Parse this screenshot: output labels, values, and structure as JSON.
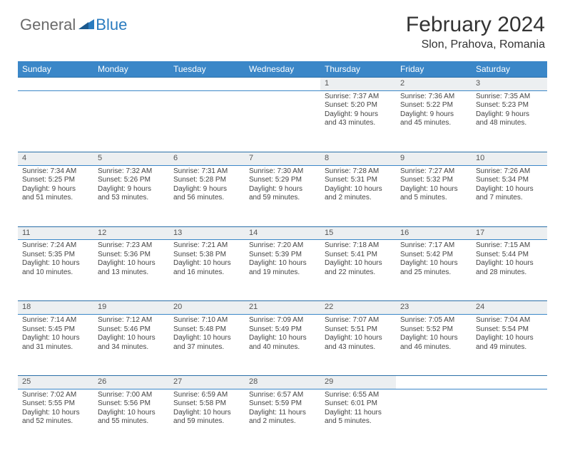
{
  "logo": {
    "text1": "General",
    "text2": "Blue"
  },
  "title": "February 2024",
  "location": "Slon, Prahova, Romania",
  "colors": {
    "header_bg": "#3b87c8",
    "header_text": "#ffffff",
    "daynum_bg": "#eceff1",
    "border": "#2a6fa8",
    "logo_gray": "#6a6a6a",
    "logo_blue": "#2a7bbf"
  },
  "day_headers": [
    "Sunday",
    "Monday",
    "Tuesday",
    "Wednesday",
    "Thursday",
    "Friday",
    "Saturday"
  ],
  "weeks": [
    [
      null,
      null,
      null,
      null,
      {
        "n": "1",
        "sr": "7:37 AM",
        "ss": "5:20 PM",
        "dl": "9 hours and 43 minutes."
      },
      {
        "n": "2",
        "sr": "7:36 AM",
        "ss": "5:22 PM",
        "dl": "9 hours and 45 minutes."
      },
      {
        "n": "3",
        "sr": "7:35 AM",
        "ss": "5:23 PM",
        "dl": "9 hours and 48 minutes."
      }
    ],
    [
      {
        "n": "4",
        "sr": "7:34 AM",
        "ss": "5:25 PM",
        "dl": "9 hours and 51 minutes."
      },
      {
        "n": "5",
        "sr": "7:32 AM",
        "ss": "5:26 PM",
        "dl": "9 hours and 53 minutes."
      },
      {
        "n": "6",
        "sr": "7:31 AM",
        "ss": "5:28 PM",
        "dl": "9 hours and 56 minutes."
      },
      {
        "n": "7",
        "sr": "7:30 AM",
        "ss": "5:29 PM",
        "dl": "9 hours and 59 minutes."
      },
      {
        "n": "8",
        "sr": "7:28 AM",
        "ss": "5:31 PM",
        "dl": "10 hours and 2 minutes."
      },
      {
        "n": "9",
        "sr": "7:27 AM",
        "ss": "5:32 PM",
        "dl": "10 hours and 5 minutes."
      },
      {
        "n": "10",
        "sr": "7:26 AM",
        "ss": "5:34 PM",
        "dl": "10 hours and 7 minutes."
      }
    ],
    [
      {
        "n": "11",
        "sr": "7:24 AM",
        "ss": "5:35 PM",
        "dl": "10 hours and 10 minutes."
      },
      {
        "n": "12",
        "sr": "7:23 AM",
        "ss": "5:36 PM",
        "dl": "10 hours and 13 minutes."
      },
      {
        "n": "13",
        "sr": "7:21 AM",
        "ss": "5:38 PM",
        "dl": "10 hours and 16 minutes."
      },
      {
        "n": "14",
        "sr": "7:20 AM",
        "ss": "5:39 PM",
        "dl": "10 hours and 19 minutes."
      },
      {
        "n": "15",
        "sr": "7:18 AM",
        "ss": "5:41 PM",
        "dl": "10 hours and 22 minutes."
      },
      {
        "n": "16",
        "sr": "7:17 AM",
        "ss": "5:42 PM",
        "dl": "10 hours and 25 minutes."
      },
      {
        "n": "17",
        "sr": "7:15 AM",
        "ss": "5:44 PM",
        "dl": "10 hours and 28 minutes."
      }
    ],
    [
      {
        "n": "18",
        "sr": "7:14 AM",
        "ss": "5:45 PM",
        "dl": "10 hours and 31 minutes."
      },
      {
        "n": "19",
        "sr": "7:12 AM",
        "ss": "5:46 PM",
        "dl": "10 hours and 34 minutes."
      },
      {
        "n": "20",
        "sr": "7:10 AM",
        "ss": "5:48 PM",
        "dl": "10 hours and 37 minutes."
      },
      {
        "n": "21",
        "sr": "7:09 AM",
        "ss": "5:49 PM",
        "dl": "10 hours and 40 minutes."
      },
      {
        "n": "22",
        "sr": "7:07 AM",
        "ss": "5:51 PM",
        "dl": "10 hours and 43 minutes."
      },
      {
        "n": "23",
        "sr": "7:05 AM",
        "ss": "5:52 PM",
        "dl": "10 hours and 46 minutes."
      },
      {
        "n": "24",
        "sr": "7:04 AM",
        "ss": "5:54 PM",
        "dl": "10 hours and 49 minutes."
      }
    ],
    [
      {
        "n": "25",
        "sr": "7:02 AM",
        "ss": "5:55 PM",
        "dl": "10 hours and 52 minutes."
      },
      {
        "n": "26",
        "sr": "7:00 AM",
        "ss": "5:56 PM",
        "dl": "10 hours and 55 minutes."
      },
      {
        "n": "27",
        "sr": "6:59 AM",
        "ss": "5:58 PM",
        "dl": "10 hours and 59 minutes."
      },
      {
        "n": "28",
        "sr": "6:57 AM",
        "ss": "5:59 PM",
        "dl": "11 hours and 2 minutes."
      },
      {
        "n": "29",
        "sr": "6:55 AM",
        "ss": "6:01 PM",
        "dl": "11 hours and 5 minutes."
      },
      null,
      null
    ]
  ],
  "labels": {
    "sunrise": "Sunrise:",
    "sunset": "Sunset:",
    "daylight": "Daylight:"
  }
}
